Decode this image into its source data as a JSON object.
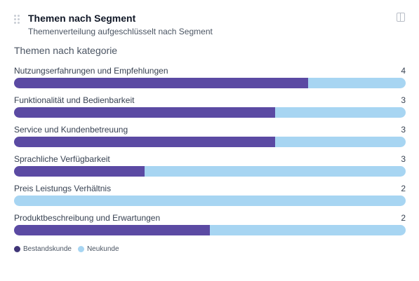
{
  "card": {
    "title": "Themen nach Segment",
    "subtitle": "Themenverteilung aufgeschlüsselt nach Segment",
    "section_title": "Themen nach kategorie"
  },
  "colors": {
    "bestandskunde": "#5b4aa3",
    "neukunde": "#a7d5f2"
  },
  "legend": [
    {
      "label": "Bestandskunde",
      "color": "#3f3577"
    },
    {
      "label": "Neukunde",
      "color": "#a7d5f2"
    }
  ],
  "chart_data": {
    "type": "bar",
    "stacked": true,
    "orientation": "horizontal",
    "title": "Themen nach kategorie",
    "series_names": [
      "Bestandskunde",
      "Neukunde"
    ],
    "categories": [
      {
        "label": "Nutzungserfahrungen und Empfehlungen",
        "count": "4",
        "bestandskunde_share": 0.75,
        "neukunde_share": 0.25
      },
      {
        "label": "Funktionalität und Bedienbarkeit",
        "count": "3",
        "bestandskunde_share": 0.667,
        "neukunde_share": 0.333
      },
      {
        "label": "Service und Kundenbetreuung",
        "count": "3",
        "bestandskunde_share": 0.667,
        "neukunde_share": 0.333
      },
      {
        "label": "Sprachliche Verfügbarkeit",
        "count": "3",
        "bestandskunde_share": 0.333,
        "neukunde_share": 0.667
      },
      {
        "label": "Preis Leistungs Verhältnis",
        "count": "2",
        "bestandskunde_share": 0.0,
        "neukunde_share": 1.0
      },
      {
        "label": "Produktbeschreibung und Erwartungen",
        "count": "2",
        "bestandskunde_share": 0.5,
        "neukunde_share": 0.5
      }
    ]
  }
}
